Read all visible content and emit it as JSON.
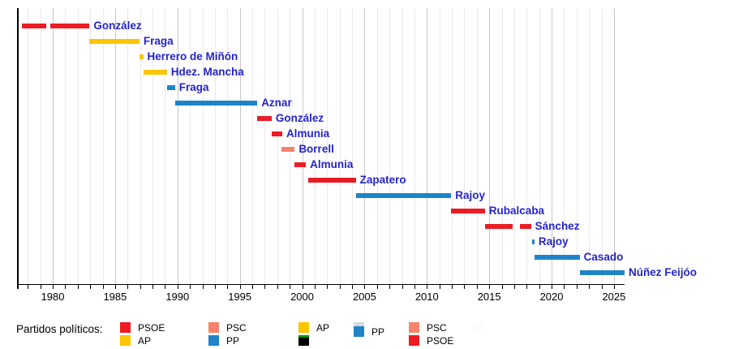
{
  "chart_data": {
    "type": "timeline",
    "title": "",
    "xlabel": "",
    "ylabel": "",
    "grid": true,
    "axis": {
      "start": 1977.2,
      "end": 2025.85,
      "grid_start": 1978,
      "grid_end": 2025,
      "tick_interval": 1,
      "tick_labels": [
        1980,
        1985,
        1990,
        1995,
        2000,
        2005,
        2010,
        2015,
        2020,
        2025
      ]
    },
    "palette": {
      "PSOE": "#EC1B24",
      "AP": "#FBC502",
      "PP": "#1E83C7",
      "PSC": "#F5836C"
    },
    "colors": {
      "grid_minor": "#E9E9E9",
      "grid_major": "#C7C7C7",
      "bar_label": "#2424CC",
      "axis": "#000000"
    },
    "rows": [
      {
        "name": "González",
        "party": "PSOE",
        "segments": [
          [
            1977.55,
            1979.45
          ],
          [
            1979.8,
            1982.95
          ]
        ]
      },
      {
        "name": "Fraga",
        "party": "AP",
        "segments": [
          [
            1982.95,
            1986.95
          ]
        ]
      },
      {
        "name": "Herrero de Miñón",
        "party": "AP",
        "segments": [
          [
            1986.95,
            1987.25
          ]
        ]
      },
      {
        "name": "Hdez. Mancha",
        "party": "AP",
        "segments": [
          [
            1987.25,
            1989.15
          ]
        ]
      },
      {
        "name": "Fraga",
        "party": "PP",
        "segments": [
          [
            1989.15,
            1989.8
          ]
        ]
      },
      {
        "name": "Aznar",
        "party": "PP",
        "segments": [
          [
            1989.8,
            1996.4
          ]
        ]
      },
      {
        "name": "González",
        "party": "PSOE",
        "segments": [
          [
            1996.4,
            1997.55
          ]
        ]
      },
      {
        "name": "Almunia",
        "party": "PSOE",
        "segments": [
          [
            1997.55,
            1998.4
          ]
        ]
      },
      {
        "name": "Borrell",
        "party": "PSC",
        "segments": [
          [
            1998.35,
            1999.4
          ]
        ]
      },
      {
        "name": "Almunia",
        "party": "PSOE",
        "segments": [
          [
            1999.4,
            2000.3
          ]
        ]
      },
      {
        "name": "Zapatero",
        "party": "PSOE",
        "segments": [
          [
            2000.5,
            2004.3
          ]
        ]
      },
      {
        "name": "Rajoy",
        "party": "PP",
        "segments": [
          [
            2004.3,
            2011.95
          ]
        ]
      },
      {
        "name": "Rubalcaba",
        "party": "PSOE",
        "segments": [
          [
            2011.95,
            2014.65
          ]
        ]
      },
      {
        "name": "Sánchez",
        "party": "PSOE",
        "segments": [
          [
            2014.65,
            2016.85
          ],
          [
            2017.45,
            2018.35
          ]
        ]
      },
      {
        "name": "Rajoy",
        "party": "PP",
        "segments": [
          [
            2018.42,
            2018.62
          ]
        ]
      },
      {
        "name": "Casado",
        "party": "PP",
        "segments": [
          [
            2018.63,
            2022.25
          ]
        ]
      },
      {
        "name": "Núñez Feijóo",
        "party": "PP",
        "segments": [
          [
            2022.25,
            2025.85
          ]
        ]
      }
    ],
    "legend": {
      "title": "Partidos políticos:",
      "position": "bottom",
      "groups": [
        {
          "entries": [
            {
              "label": "PSOE",
              "party": "PSOE"
            },
            {
              "label": "AP",
              "party": "AP"
            }
          ]
        },
        {
          "entries": [
            {
              "label": "PSC",
              "party": "PSC"
            },
            {
              "label": "PP",
              "party": "PP"
            }
          ]
        },
        {
          "entries": [
            {
              "label": "AP",
              "party": "AP"
            },
            {
              "label": "",
              "color": "#000000",
              "cap_color": "#089000",
              "cap_h": 3,
              "swatch_h": 10
            }
          ]
        },
        {
          "offset": true,
          "entries": [
            {
              "label": "PP",
              "party": "PP",
              "cap_color": "#D9D9D9",
              "cap_h": 5
            }
          ]
        },
        {
          "entries": [
            {
              "label": "PSC",
              "party": "PSC"
            },
            {
              "label": "PSOE",
              "party": "PSOE"
            }
          ]
        },
        {
          "entries": [
            {
              "label": "",
              "color": "#FCFCFC"
            }
          ]
        }
      ]
    }
  }
}
